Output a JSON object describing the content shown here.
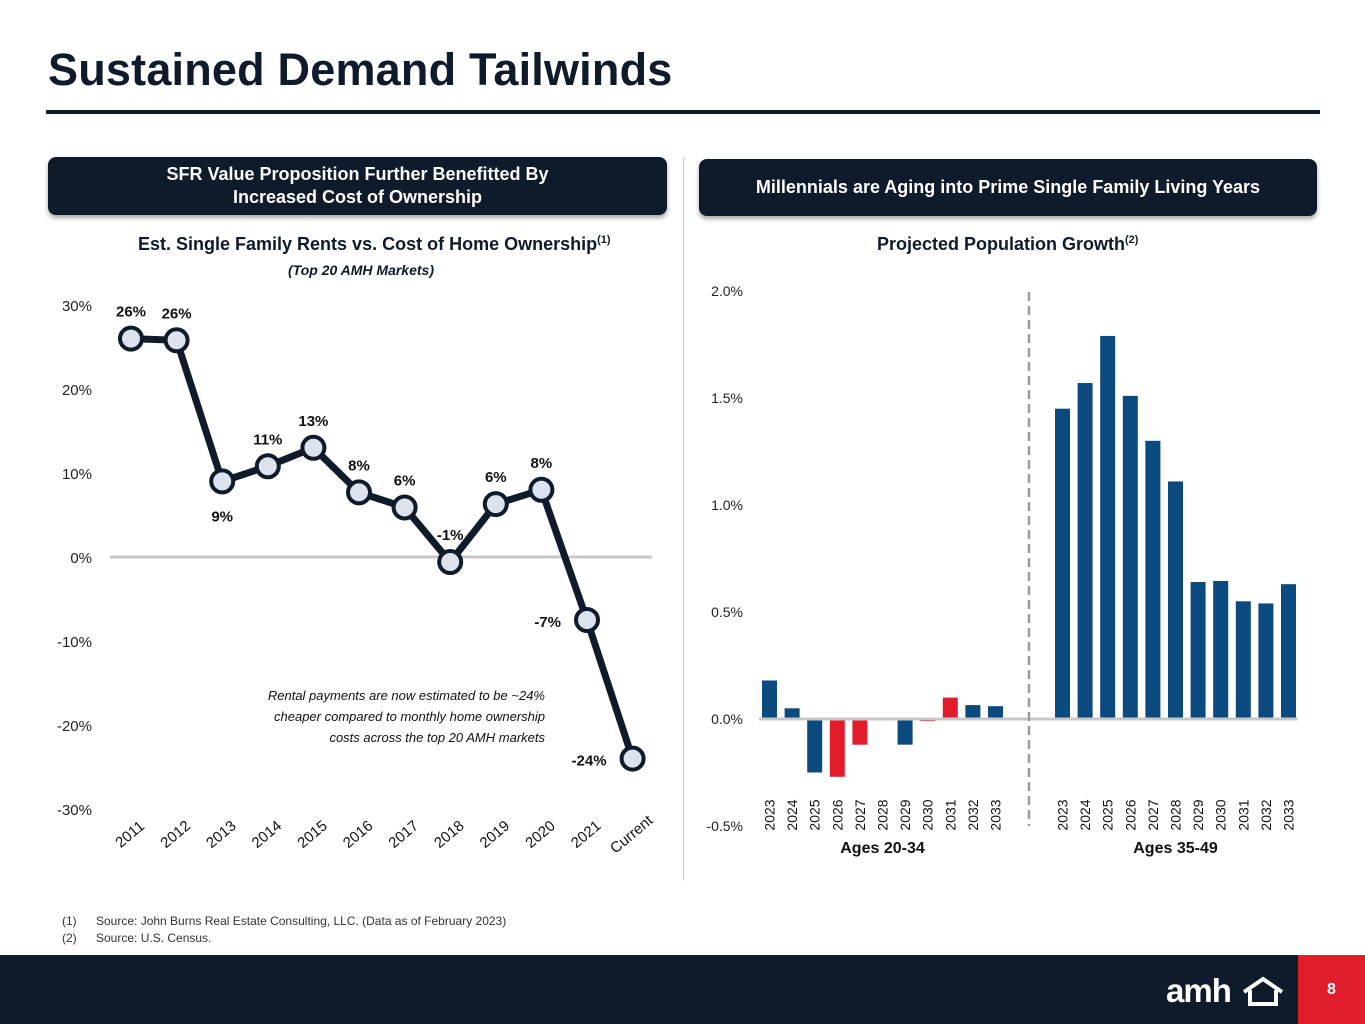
{
  "page": {
    "title": "Sustained Demand Tailwinds",
    "page_number": "8"
  },
  "left_panel": {
    "header_line1": "SFR Value Proposition Further Benefitted By",
    "header_line2": "Increased Cost of Ownership",
    "chart_title": "Est. Single Family Rents vs. Cost of Home Ownership",
    "chart_title_sup": "(1)",
    "chart_subtitle": "(Top 20 AMH Markets)",
    "annotation": [
      "Rental payments are now estimated to be ~24%",
      "cheaper compared to monthly home ownership",
      "costs across the top 20 AMH markets"
    ]
  },
  "right_panel": {
    "header": "Millennials are Aging into Prime Single Family Living Years",
    "chart_title": "Projected Population Growth",
    "chart_title_sup": "(2)"
  },
  "footnotes": [
    {
      "num": "(1)",
      "text": "Source: John Burns Real Estate Consulting, LLC. (Data as of February 2023)"
    },
    {
      "num": "(2)",
      "text": "Source: U.S. Census."
    }
  ],
  "logo": {
    "text": "amh"
  },
  "colors": {
    "navy": "#0f1a2a",
    "bar_blue": "#0b4a7e",
    "bar_red": "#e21d2b",
    "marker_fill": "#dde3ee",
    "zero_line": "#c8c8c8"
  },
  "chart_data": [
    {
      "type": "line",
      "title": "Est. Single Family Rents vs. Cost of Home Ownership",
      "subtitle": "(Top 20 AMH Markets)",
      "categories": [
        "2011",
        "2012",
        "2013",
        "2014",
        "2015",
        "2016",
        "2017",
        "2018",
        "2019",
        "2020",
        "2021",
        "Current"
      ],
      "values": [
        26,
        25.8,
        9,
        10.8,
        13,
        7.7,
        5.9,
        -0.6,
        6.3,
        8,
        -7.5,
        -24
      ],
      "labels": [
        "26%",
        "26%",
        "9%",
        "11%",
        "13%",
        "8%",
        "6%",
        "-1%",
        "6%",
        "8%",
        "-7%",
        "-24%"
      ],
      "label_positions": [
        "above",
        "above",
        "below",
        "above",
        "above",
        "above",
        "above",
        "above",
        "above",
        "above",
        "left",
        "left"
      ],
      "yticks": [
        "30%",
        "20%",
        "10%",
        "0%",
        "-10%",
        "-20%",
        "-30%"
      ],
      "ylim": [
        -30,
        30
      ],
      "ylabel": "",
      "xlabel": "",
      "grid": false
    },
    {
      "type": "bar",
      "title": "Projected Population Growth",
      "ylim": [
        -0.5,
        2.0
      ],
      "yticks": [
        "2.0%",
        "1.5%",
        "1.0%",
        "0.5%",
        "0.0%",
        "-0.5%"
      ],
      "grid": false,
      "groups": [
        {
          "name": "Ages 20-34",
          "categories": [
            "2023",
            "2024",
            "2025",
            "2026",
            "2027",
            "2028",
            "2029",
            "2030",
            "2031",
            "2032",
            "2033"
          ],
          "values": [
            0.18,
            0.05,
            -0.25,
            -0.27,
            -0.12,
            0.0,
            -0.12,
            -0.01,
            0.1,
            0.065,
            0.06
          ],
          "colors": [
            "blue",
            "blue",
            "blue",
            "red",
            "red",
            "blue",
            "blue",
            "red",
            "red",
            "blue",
            "blue"
          ]
        },
        {
          "name": "Ages 35-49",
          "categories": [
            "2023",
            "2024",
            "2025",
            "2026",
            "2027",
            "2028",
            "2029",
            "2030",
            "2031",
            "2032",
            "2033"
          ],
          "values": [
            1.45,
            1.57,
            1.79,
            1.51,
            1.3,
            1.11,
            0.64,
            0.645,
            0.55,
            0.54,
            0.63
          ],
          "colors": [
            "blue",
            "blue",
            "blue",
            "blue",
            "blue",
            "blue",
            "blue",
            "blue",
            "blue",
            "blue",
            "blue"
          ]
        }
      ]
    }
  ]
}
